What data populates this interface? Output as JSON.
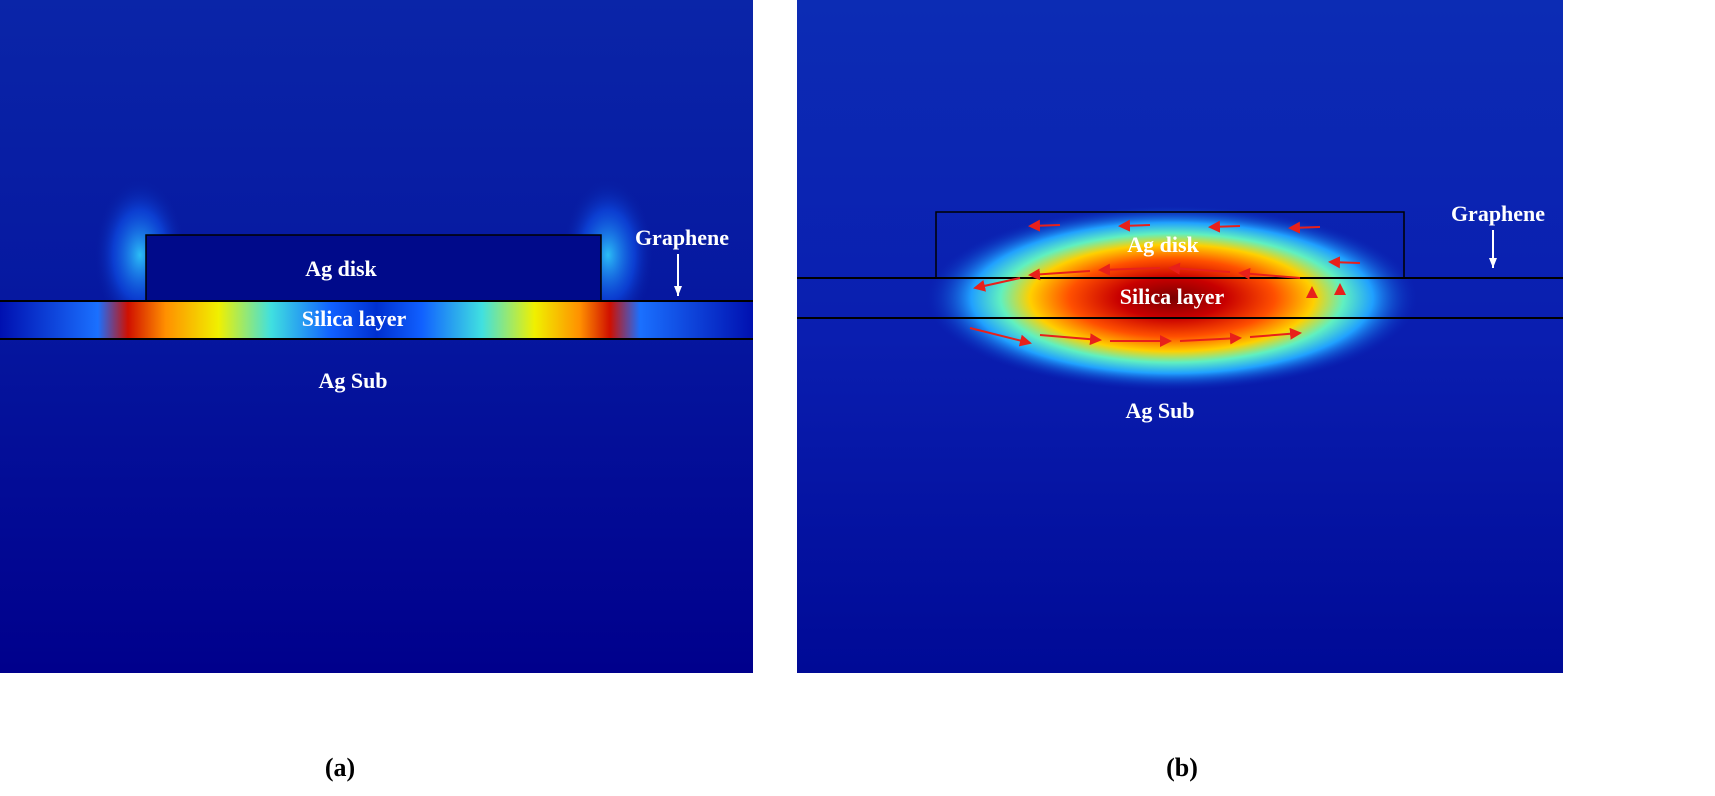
{
  "panels": [
    {
      "caption": "(a)",
      "labels": {
        "disk": "Ag disk",
        "silica": "Silica layer",
        "substrate": "Ag Sub",
        "graphene": "Graphene"
      }
    },
    {
      "caption": "(b)",
      "labels": {
        "disk": "Ag disk",
        "silica": "Silica layer",
        "substrate": "Ag Sub",
        "graphene": "Graphene"
      }
    }
  ],
  "colors": {
    "background": "#00008f",
    "hot": "#8b0000",
    "arrows": "#e8201a"
  }
}
